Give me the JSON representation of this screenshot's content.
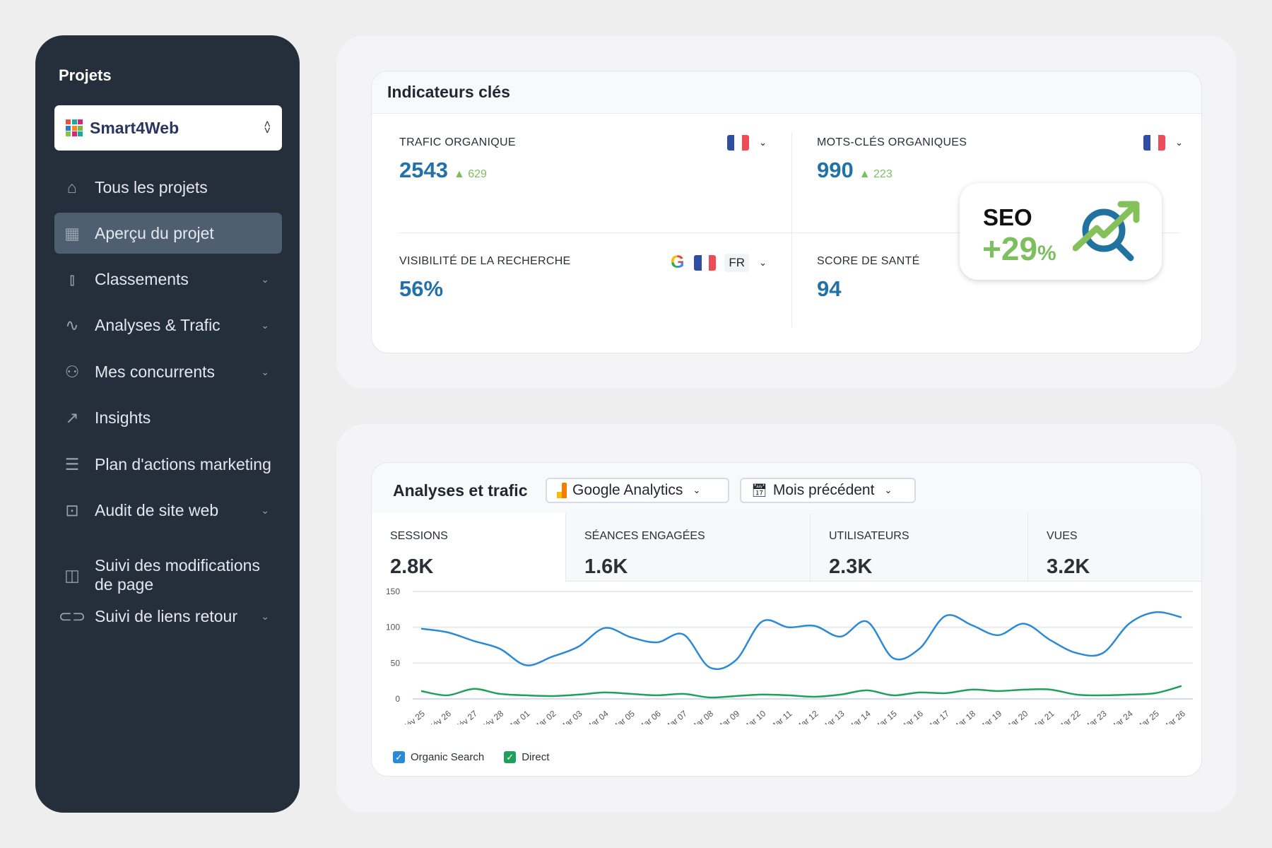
{
  "sidebar": {
    "section_title": "Projets",
    "project": "Smart4Web",
    "items": [
      {
        "label": "Tous les projets",
        "icon": "home-icon",
        "chevron": false
      },
      {
        "label": "Aperçu du projet",
        "icon": "grid-icon",
        "chevron": false,
        "active": true
      },
      {
        "label": "Classements",
        "icon": "bar-chart-icon",
        "chevron": true
      },
      {
        "label": "Analyses & Trafic",
        "icon": "pulse-icon",
        "chevron": true
      },
      {
        "label": "Mes concurrents",
        "icon": "users-icon",
        "chevron": true
      },
      {
        "label": "Insights",
        "icon": "sparkle-trend-icon",
        "chevron": false
      },
      {
        "label": "Plan d'actions marketing",
        "icon": "checklist-icon",
        "chevron": false
      },
      {
        "label": "Audit de site web",
        "icon": "search-box-icon",
        "chevron": true
      },
      {
        "label": "Suivi des modifications de page",
        "icon": "split-page-icon",
        "chevron": false
      },
      {
        "label": "Suivi de liens retour",
        "icon": "link-icon",
        "chevron": true
      }
    ]
  },
  "kpi": {
    "title": "Indicateurs clés",
    "organic_traffic": {
      "label": "TRAFIC ORGANIQUE",
      "value": "2543",
      "delta": "629"
    },
    "organic_keywords": {
      "label": "MOTS-CLÉS ORGANIQUES",
      "value": "990",
      "delta": "223"
    },
    "visibility": {
      "label": "VISIBILITÉ DE LA RECHERCHE",
      "value": "56%",
      "lang": "FR"
    },
    "health": {
      "label": "SCORE DE SANTÉ",
      "value": "94"
    },
    "badge": {
      "title": "SEO",
      "value": "+29",
      "unit": "%"
    }
  },
  "analytics": {
    "title": "Analyses et trafic",
    "source": "Google Analytics",
    "period": "Mois précédent",
    "metrics": [
      {
        "label": "SESSIONS",
        "value": "2.8K"
      },
      {
        "label": "SÉANCES ENGAGÉES",
        "value": "1.6K"
      },
      {
        "label": "UTILISATEURS",
        "value": "2.3K"
      },
      {
        "label": "VUES",
        "value": "3.2K"
      }
    ]
  },
  "colors": {
    "accent": "#2271a8",
    "positive": "#7dbf5f",
    "sidebar": "#252e3b",
    "organic": "#2b8ad6",
    "direct": "#1fa15a"
  },
  "chart_data": {
    "type": "line",
    "x": [
      "Fév 25",
      "Fév 26",
      "Fév 27",
      "Fév 28",
      "Mar 01",
      "Mar 02",
      "Mar 03",
      "Mar 04",
      "Mar 05",
      "Mar 06",
      "Mar 07",
      "Mar 08",
      "Mar 09",
      "Mar 10",
      "Mar 11",
      "Mar 12",
      "Mar 13",
      "Mar 14",
      "Mar 15",
      "Mar 16",
      "Mar 17",
      "Mar 18",
      "Mar 19",
      "Mar 20",
      "Mar 21",
      "Mar 22",
      "Mar 23",
      "Mar 24",
      "Mar 25",
      "Mar 26"
    ],
    "yticks": [
      "0",
      "50",
      "100",
      "150"
    ],
    "ylim": [
      0,
      150
    ],
    "grid": true,
    "legend": "bottom-left",
    "series": [
      {
        "name": "Organic Search",
        "color": "#2b8ad6",
        "values": [
          98,
          93,
          81,
          70,
          47,
          59,
          73,
          99,
          86,
          79,
          90,
          44,
          54,
          108,
          100,
          102,
          87,
          108,
          57,
          70,
          116,
          103,
          89,
          105,
          82,
          64,
          64,
          105,
          121,
          114
        ]
      },
      {
        "name": "Direct",
        "color": "#1fa15a",
        "values": [
          11,
          5,
          14,
          7,
          5,
          4,
          6,
          9,
          7,
          5,
          7,
          2,
          4,
          6,
          5,
          3,
          6,
          12,
          5,
          9,
          8,
          13,
          11,
          13,
          13,
          6,
          5,
          6,
          8,
          18
        ]
      }
    ]
  }
}
